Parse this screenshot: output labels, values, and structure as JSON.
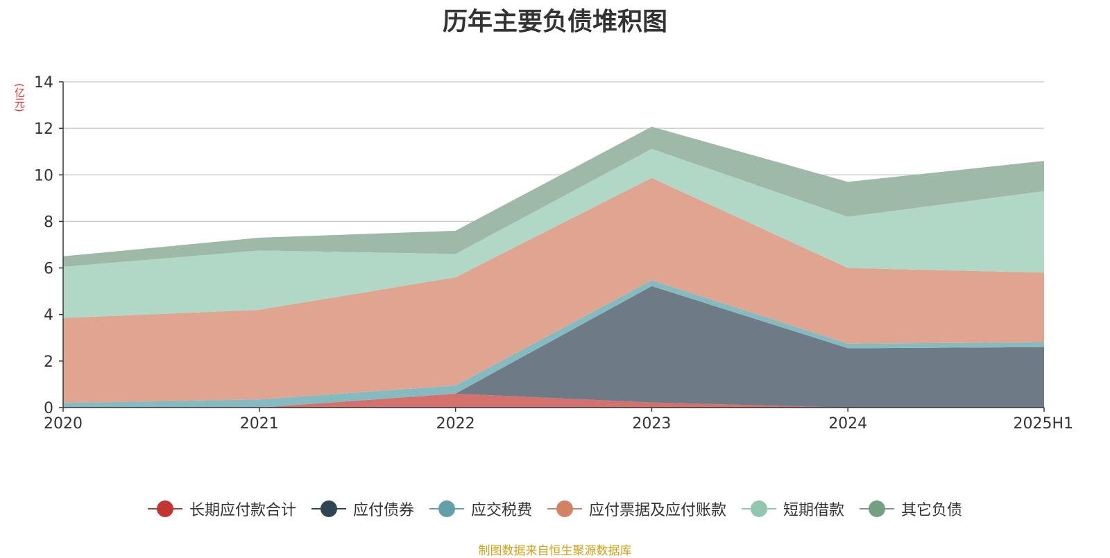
{
  "chart_data": {
    "type": "area",
    "stacked": true,
    "title": "历年主要负债堆积图",
    "y_unit": "(亿元)",
    "x": [
      "2020",
      "2021",
      "2022",
      "2023",
      "2024",
      "2025H1"
    ],
    "ylim": [
      0,
      14
    ],
    "yticks": [
      "0",
      "2",
      "4",
      "6",
      "8",
      "10",
      "12",
      "14"
    ],
    "grid": true,
    "legend_position": "bottom",
    "series": [
      {
        "name": "长期应付款合计",
        "color": "#c23531",
        "fill": "#d2716d",
        "values": [
          0.0,
          0.0,
          0.6,
          0.22,
          0.0,
          0.0
        ]
      },
      {
        "name": "应付债券",
        "color": "#2f4554",
        "fill": "#6e7b87",
        "values": [
          0.0,
          0.0,
          0.0,
          5.0,
          2.55,
          2.6
        ]
      },
      {
        "name": "应交税费",
        "color": "#61a0a8",
        "fill": "#86bac1",
        "values": [
          0.2,
          0.35,
          0.35,
          0.25,
          0.2,
          0.2
        ]
      },
      {
        "name": "应付票据及应付账款",
        "color": "#d48265",
        "fill": "#dfa591",
        "values": [
          3.65,
          3.85,
          4.65,
          4.4,
          3.25,
          3.0
        ]
      },
      {
        "name": "短期借款",
        "color": "#91c7ae",
        "fill": "#b1d8c6",
        "values": [
          2.2,
          2.55,
          1.0,
          1.25,
          2.2,
          3.5
        ]
      },
      {
        "name": "其它负债",
        "color": "#749f83",
        "fill": "#9eb9a7",
        "values": [
          0.45,
          0.55,
          1.0,
          0.95,
          1.5,
          1.3
        ]
      }
    ],
    "source": "制图数据来自恒生聚源数据库"
  }
}
